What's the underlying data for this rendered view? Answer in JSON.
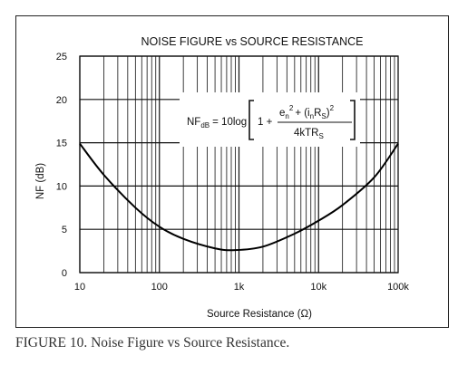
{
  "chart_data": {
    "type": "line",
    "title": "NOISE FIGURE vs SOURCE RESISTANCE",
    "xlabel": "Source Resistance (Ω)",
    "ylabel": "NF (dB)",
    "xscale": "log",
    "xlim": [
      10,
      100000
    ],
    "ylim": [
      0,
      25
    ],
    "grid": true,
    "x_ticks": [
      {
        "value": 10,
        "label": "10"
      },
      {
        "value": 100,
        "label": "100"
      },
      {
        "value": 1000,
        "label": "1k"
      },
      {
        "value": 10000,
        "label": "10k"
      },
      {
        "value": 100000,
        "label": "100k"
      }
    ],
    "y_ticks": [
      {
        "value": 0,
        "label": "0"
      },
      {
        "value": 5,
        "label": "5"
      },
      {
        "value": 10,
        "label": "10"
      },
      {
        "value": 15,
        "label": "15"
      },
      {
        "value": 20,
        "label": "20"
      },
      {
        "value": 25,
        "label": "25"
      }
    ],
    "series": [
      {
        "x": [
          10,
          20,
          50,
          100,
          200,
          500,
          900,
          2000,
          5000,
          10000,
          20000,
          50000,
          100000
        ],
        "y": [
          14.9,
          11.3,
          7.5,
          5.3,
          3.9,
          2.8,
          2.6,
          3.0,
          4.5,
          6.0,
          7.8,
          11.0,
          14.9
        ]
      }
    ],
    "equation": {
      "lhs": "NF",
      "lhs_sub": "dB",
      "eq_text": "= 10log",
      "one_plus": "1 +",
      "num_e": "e",
      "num_e_sub": "n",
      "num_e_sup": "2",
      "num_plus": "+ (i",
      "num_i_sub": "n",
      "num_r": "R",
      "num_r_sub": "S",
      "num_close": ")",
      "num_close_sup": "2",
      "den_main": "4kTR",
      "den_sub": "S"
    }
  },
  "caption": "FIGURE 10. Noise Figure vs Source Resistance."
}
